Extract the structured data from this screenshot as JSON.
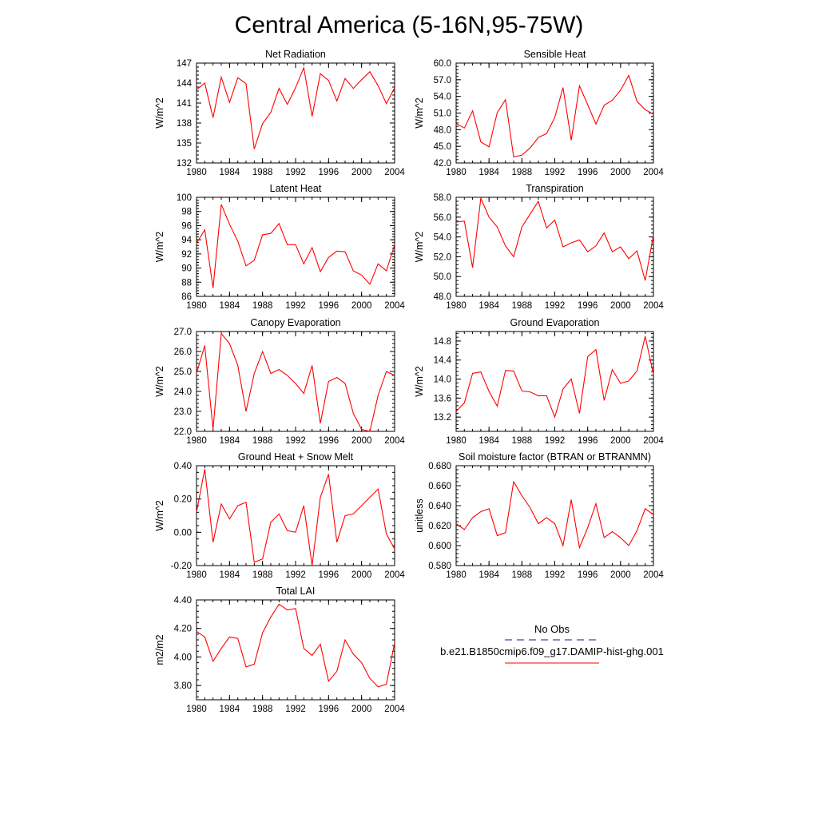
{
  "title": "Central America (5-16N,95-75W)",
  "years": [
    1980,
    1981,
    1982,
    1983,
    1984,
    1985,
    1986,
    1987,
    1988,
    1989,
    1990,
    1991,
    1992,
    1993,
    1994,
    1995,
    1996,
    1997,
    1998,
    1999,
    2000,
    2001,
    2002,
    2003,
    2004
  ],
  "colors": {
    "model_line": "#ff0000",
    "obs_line": "#1a1a80"
  },
  "legend": {
    "obs_label": "No Obs",
    "model_label": "b.e21.B1850cmip6.f09_g17.DAMIP-hist-ghg.001"
  },
  "chart_data": [
    {
      "type": "line",
      "title": "Net Radiation",
      "ylabel": "W/m^2",
      "ylim": [
        132,
        147
      ],
      "yticks": [
        "132",
        "135",
        "138",
        "141",
        "144",
        "147"
      ],
      "xlim": [
        1980,
        2004
      ],
      "xticks": [
        "1980",
        "1984",
        "1988",
        "1992",
        "1996",
        "2000",
        "2004"
      ],
      "values": [
        143.0,
        144.0,
        138.8,
        144.9,
        141.1,
        144.8,
        143.9,
        134.1,
        137.9,
        139.6,
        143.2,
        140.8,
        143.3,
        146.3,
        139.0,
        145.4,
        144.4,
        141.3,
        144.7,
        143.2,
        144.5,
        145.7,
        143.6,
        140.9,
        143.3
      ]
    },
    {
      "type": "line",
      "title": "Sensible Heat",
      "ylabel": "W/m^2",
      "ylim": [
        42.0,
        60.0
      ],
      "yticks": [
        "42.0",
        "45.0",
        "48.0",
        "51.0",
        "54.0",
        "57.0",
        "60.0"
      ],
      "xlim": [
        1980,
        2004
      ],
      "xticks": [
        "1980",
        "1984",
        "1988",
        "1992",
        "1996",
        "2000",
        "2004"
      ],
      "values": [
        49.1,
        48.3,
        51.4,
        45.8,
        44.9,
        51.1,
        53.4,
        43.1,
        43.4,
        44.7,
        46.6,
        47.3,
        50.2,
        55.6,
        46.1,
        55.9,
        52.5,
        49.0,
        52.4,
        53.3,
        55.1,
        57.8,
        53.1,
        51.6,
        50.8
      ]
    },
    {
      "type": "line",
      "title": "Latent Heat",
      "ylabel": "W/m^2",
      "ylim": [
        86,
        100
      ],
      "yticks": [
        "86",
        "88",
        "90",
        "92",
        "94",
        "96",
        "98",
        "100"
      ],
      "xlim": [
        1980,
        2004
      ],
      "xticks": [
        "1980",
        "1984",
        "1988",
        "1992",
        "1996",
        "2000",
        "2004"
      ],
      "values": [
        93.5,
        95.4,
        87.2,
        99.0,
        96.2,
        93.8,
        90.3,
        91.1,
        94.7,
        94.9,
        96.3,
        93.3,
        93.3,
        90.6,
        92.9,
        89.5,
        91.5,
        92.4,
        92.3,
        89.6,
        89.0,
        87.7,
        90.6,
        89.6,
        93.3
      ]
    },
    {
      "type": "line",
      "title": "Transpiration",
      "ylabel": "W/m^2",
      "ylim": [
        48.0,
        58.0
      ],
      "yticks": [
        "48.0",
        "50.0",
        "52.0",
        "54.0",
        "56.0",
        "58.0"
      ],
      "xlim": [
        1980,
        2004
      ],
      "xticks": [
        "1980",
        "1984",
        "1988",
        "1992",
        "1996",
        "2000",
        "2004"
      ],
      "values": [
        55.5,
        55.6,
        50.9,
        57.9,
        56.0,
        55.0,
        53.1,
        52.0,
        55.0,
        56.3,
        57.6,
        54.9,
        55.7,
        53.0,
        53.4,
        53.7,
        52.5,
        53.1,
        54.4,
        52.5,
        53.0,
        51.8,
        52.6,
        49.6,
        54.2
      ]
    },
    {
      "type": "line",
      "title": "Canopy Evaporation",
      "ylabel": "W/m^2",
      "ylim": [
        22.0,
        27.0
      ],
      "yticks": [
        "22.0",
        "23.0",
        "24.0",
        "25.0",
        "26.0",
        "27.0"
      ],
      "xlim": [
        1980,
        2004
      ],
      "xticks": [
        "1980",
        "1984",
        "1988",
        "1992",
        "1996",
        "2000",
        "2004"
      ],
      "values": [
        24.9,
        26.3,
        22.1,
        26.9,
        26.4,
        25.3,
        23.0,
        24.9,
        26.0,
        24.9,
        25.1,
        24.8,
        24.4,
        23.9,
        25.3,
        22.4,
        24.5,
        24.7,
        24.4,
        22.9,
        22.1,
        22.0,
        23.8,
        25.0,
        24.8
      ]
    },
    {
      "type": "line",
      "title": "Ground Evaporation",
      "ylabel": "W/m^2",
      "ylim": [
        12.9,
        15.0
      ],
      "yticks": [
        "13.2",
        "13.6",
        "14.0",
        "14.4",
        "14.8"
      ],
      "xlim": [
        1980,
        2004
      ],
      "xticks": [
        "1980",
        "1984",
        "1988",
        "1992",
        "1996",
        "2000",
        "2004"
      ],
      "values": [
        13.32,
        13.5,
        14.12,
        14.15,
        13.74,
        13.43,
        14.18,
        14.17,
        13.75,
        13.73,
        13.65,
        13.65,
        13.2,
        13.79,
        14.0,
        13.28,
        14.47,
        14.62,
        13.55,
        14.2,
        13.91,
        13.96,
        14.17,
        14.9,
        14.1
      ]
    },
    {
      "type": "line",
      "title": "Ground Heat + Snow Melt",
      "ylabel": "W/m^2",
      "ylim": [
        -0.2,
        0.4
      ],
      "yticks": [
        "-0.20",
        "0.00",
        "0.20",
        "0.40"
      ],
      "xlim": [
        1980,
        2004
      ],
      "xticks": [
        "1980",
        "1984",
        "1988",
        "1992",
        "1996",
        "2000",
        "2004"
      ],
      "values": [
        0.12,
        0.38,
        -0.06,
        0.17,
        0.08,
        0.16,
        0.18,
        -0.18,
        -0.16,
        0.06,
        0.11,
        0.01,
        0.0,
        0.16,
        -0.2,
        0.21,
        0.35,
        -0.06,
        0.1,
        0.11,
        0.16,
        0.21,
        0.26,
        -0.01,
        -0.1
      ]
    },
    {
      "type": "line",
      "title": "Soil moisture factor (BTRAN or BTRANMN)",
      "ylabel": "unitless",
      "ylim": [
        0.58,
        0.68
      ],
      "yticks": [
        "0.580",
        "0.600",
        "0.620",
        "0.640",
        "0.660",
        "0.680"
      ],
      "xlim": [
        1980,
        2004
      ],
      "xticks": [
        "1980",
        "1984",
        "1988",
        "1992",
        "1996",
        "2000",
        "2004"
      ],
      "values": [
        0.622,
        0.616,
        0.628,
        0.634,
        0.637,
        0.61,
        0.613,
        0.664,
        0.65,
        0.638,
        0.622,
        0.628,
        0.622,
        0.6,
        0.646,
        0.598,
        0.618,
        0.642,
        0.608,
        0.614,
        0.608,
        0.6,
        0.615,
        0.637,
        0.631
      ]
    },
    {
      "type": "line",
      "title": "Total LAI",
      "ylabel": "m2/m2",
      "ylim": [
        3.7,
        4.4
      ],
      "yticks": [
        "3.80",
        "4.00",
        "4.20",
        "4.40"
      ],
      "xlim": [
        1980,
        2004
      ],
      "xticks": [
        "1980",
        "1984",
        "1988",
        "1992",
        "1996",
        "2000",
        "2004"
      ],
      "values": [
        4.18,
        4.14,
        3.97,
        4.06,
        4.14,
        4.13,
        3.93,
        3.95,
        4.17,
        4.28,
        4.37,
        4.33,
        4.34,
        4.06,
        4.01,
        4.09,
        3.83,
        3.9,
        4.12,
        4.02,
        3.96,
        3.85,
        3.79,
        3.81,
        4.1
      ]
    }
  ]
}
